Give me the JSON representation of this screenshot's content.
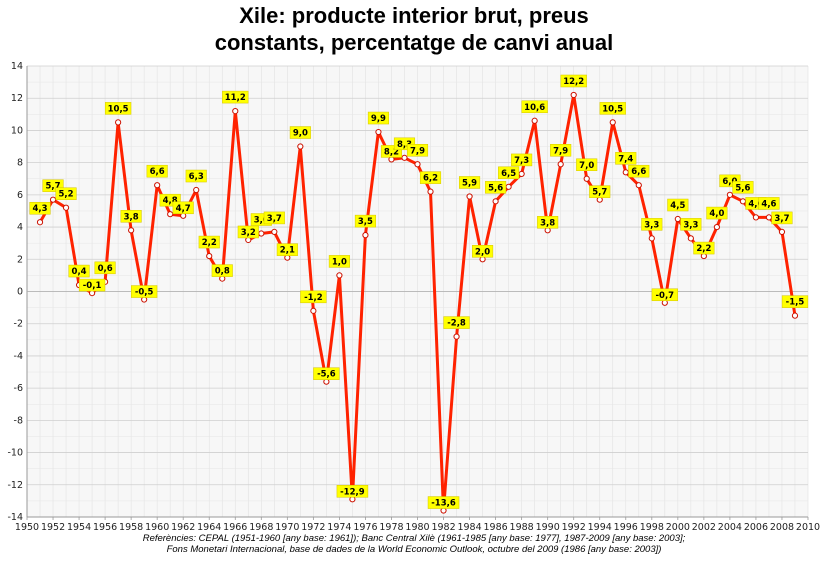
{
  "chart_data": {
    "type": "line",
    "title_lines": [
      "Xile: producte interior brut, preus",
      "constants, percentatge de canvi anual"
    ],
    "xlabel": "",
    "ylabel": "",
    "xlim": [
      1950,
      2010
    ],
    "ylim": [
      -14,
      14
    ],
    "x_ticks": [
      1950,
      1952,
      1954,
      1956,
      1958,
      1960,
      1962,
      1964,
      1966,
      1968,
      1970,
      1972,
      1974,
      1976,
      1978,
      1980,
      1982,
      1984,
      1986,
      1988,
      1990,
      1992,
      1994,
      1996,
      1998,
      2000,
      2002,
      2004,
      2006,
      2008,
      2010
    ],
    "y_ticks": [
      -14,
      -12,
      -10,
      -8,
      -6,
      -4,
      -2,
      0,
      2,
      4,
      6,
      8,
      10,
      12,
      14
    ],
    "grid": true,
    "line_color": "#ff2200",
    "label_color": "#ffff00",
    "series": [
      {
        "x": [
          1951,
          1952,
          1953,
          1954,
          1955,
          1956,
          1957,
          1958,
          1959,
          1960,
          1961,
          1962,
          1963,
          1964,
          1965,
          1966,
          1967,
          1968,
          1969,
          1970,
          1971,
          1972,
          1973,
          1974,
          1975,
          1976,
          1977,
          1978,
          1979,
          1980,
          1981,
          1982,
          1983,
          1984,
          1985,
          1986,
          1987,
          1988,
          1989,
          1990,
          1991,
          1992,
          1993,
          1994,
          1995,
          1996,
          1997,
          1998,
          1999,
          2000,
          2001,
          2002,
          2003,
          2004,
          2005,
          2006,
          2007,
          2008,
          2009
        ],
        "y": [
          4.3,
          5.7,
          5.2,
          0.4,
          -0.1,
          0.6,
          10.5,
          3.8,
          -0.5,
          6.6,
          4.8,
          4.7,
          6.3,
          2.2,
          0.8,
          11.2,
          3.2,
          3.6,
          3.7,
          2.1,
          9.0,
          -1.2,
          -5.6,
          1.0,
          -12.9,
          3.5,
          9.9,
          8.2,
          8.3,
          7.9,
          6.2,
          -13.6,
          -2.8,
          5.9,
          2.0,
          5.6,
          6.5,
          7.3,
          10.6,
          3.8,
          7.9,
          12.2,
          7.0,
          5.7,
          10.5,
          7.4,
          6.6,
          3.3,
          -0.7,
          4.5,
          3.3,
          2.2,
          4.0,
          6.0,
          5.6,
          4.6,
          4.6,
          3.7,
          -1.5
        ],
        "labels": [
          "4,3",
          "5,7",
          "5,2",
          "0,4",
          "-0,1",
          "0,6",
          "10,5",
          "3,8",
          "-0,5",
          "6,6",
          "4,8",
          "4,7",
          "6,3",
          "2,2",
          "0,8",
          "11,2",
          "3,2",
          "3,6",
          "3,7",
          "2,1",
          "9,0",
          "-1,2",
          "-5,6",
          "1,0",
          "-12,9",
          "3,5",
          "9,9",
          "8,2",
          "8,3",
          "7,9",
          "6,2",
          "-13,6",
          "-2,8",
          "5,9",
          "2,0",
          "5,6",
          "6,5",
          "7,3",
          "10,6",
          "3,8",
          "7,9",
          "12,2",
          "7,0",
          "5,7",
          "10,5",
          "7,4",
          "6,6",
          "3,3",
          "-0,7",
          "4,5",
          "3,3",
          "2,2",
          "4,0",
          "6,0",
          "5,6",
          "4,6",
          "4,6",
          "3,7",
          "-1,5"
        ]
      }
    ]
  },
  "source_lines": [
    "Referències: CEPAL (1951-1960 [any base: 1961]); Banc Central Xilè (1961-1985 [any base: 1977], 1987-2009 [any base: 2003];",
    "Fons Monetari Internacional, base de dades de la World Economic Outlook, octubre del 2009 (1986 [any base: 2003])"
  ]
}
